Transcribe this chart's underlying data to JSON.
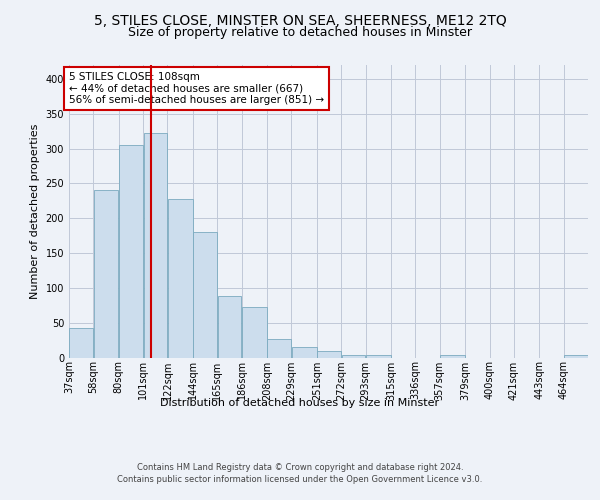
{
  "title_line1": "5, STILES CLOSE, MINSTER ON SEA, SHEERNESS, ME12 2TQ",
  "title_line2": "Size of property relative to detached houses in Minster",
  "xlabel": "Distribution of detached houses by size in Minster",
  "ylabel": "Number of detached properties",
  "bar_color": "#ccdded",
  "bar_edge_color": "#7aaabf",
  "annotation_text": "5 STILES CLOSE: 108sqm\n← 44% of detached houses are smaller (667)\n56% of semi-detached houses are larger (851) →",
  "vline_x": 108,
  "vline_color": "#cc0000",
  "footer_line1": "Contains HM Land Registry data © Crown copyright and database right 2024.",
  "footer_line2": "Contains public sector information licensed under the Open Government Licence v3.0.",
  "categories": [
    "37sqm",
    "58sqm",
    "80sqm",
    "101sqm",
    "122sqm",
    "144sqm",
    "165sqm",
    "186sqm",
    "208sqm",
    "229sqm",
    "251sqm",
    "272sqm",
    "293sqm",
    "315sqm",
    "336sqm",
    "357sqm",
    "379sqm",
    "400sqm",
    "421sqm",
    "443sqm",
    "464sqm"
  ],
  "bin_edges": [
    37,
    58,
    80,
    101,
    122,
    144,
    165,
    186,
    208,
    229,
    251,
    272,
    293,
    315,
    336,
    357,
    379,
    400,
    421,
    443,
    464,
    485
  ],
  "values": [
    42,
    241,
    305,
    323,
    228,
    180,
    89,
    72,
    26,
    15,
    10,
    4,
    4,
    0,
    0,
    4,
    0,
    0,
    0,
    0,
    4
  ],
  "ylim": [
    0,
    420
  ],
  "yticks": [
    0,
    50,
    100,
    150,
    200,
    250,
    300,
    350,
    400
  ],
  "background_color": "#eef2f8",
  "plot_bg_color": "#eef2f8",
  "grid_color": "#c0c8d8",
  "title_fontsize": 10,
  "subtitle_fontsize": 9,
  "annotation_box_color": "#ffffff",
  "annotation_box_edge": "#cc0000",
  "annotation_fontsize": 7.5,
  "ylabel_fontsize": 8,
  "xlabel_fontsize": 8,
  "tick_fontsize": 7,
  "footer_fontsize": 6
}
